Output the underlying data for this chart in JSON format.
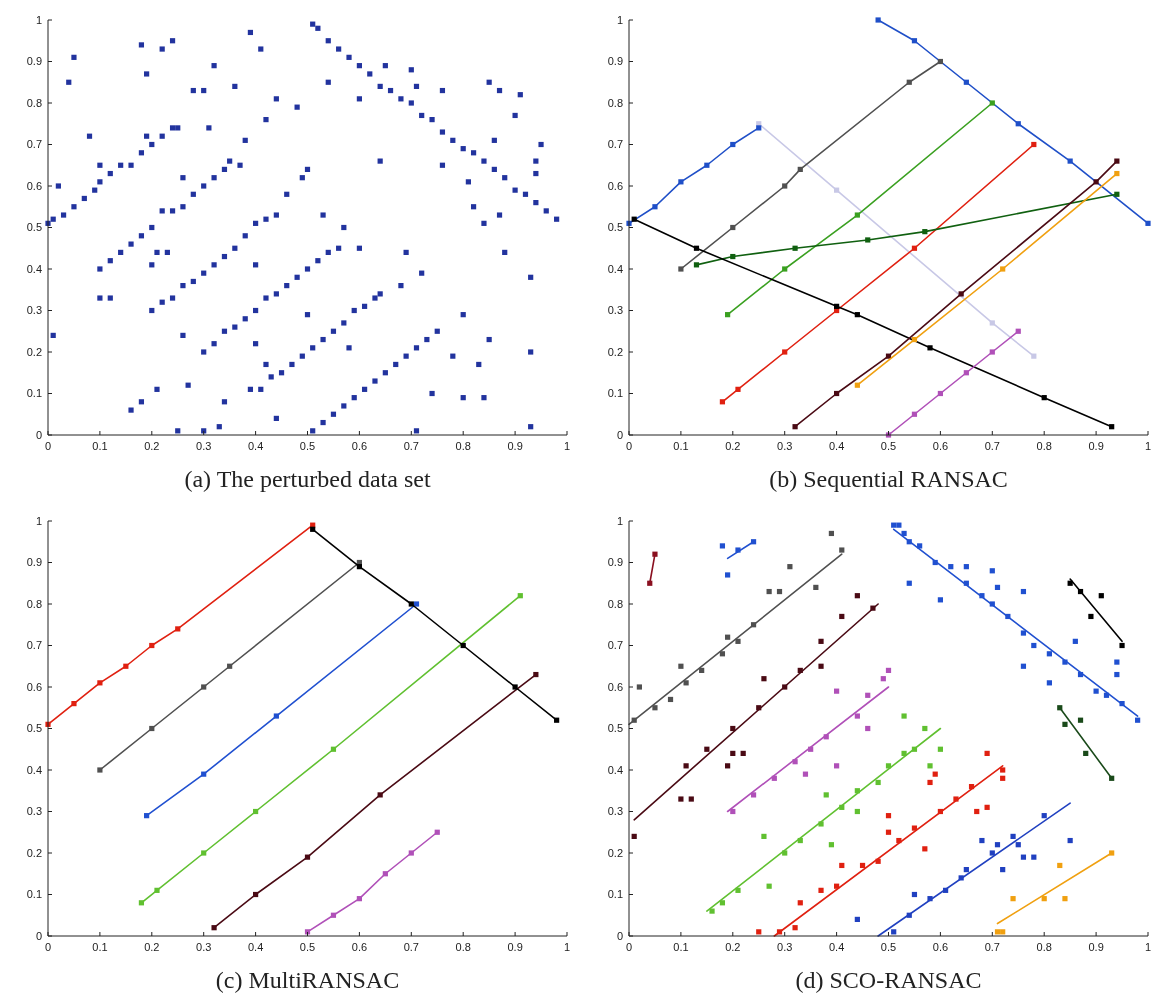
{
  "chart_data": [
    {
      "type": "scatter",
      "title": "(a) The perturbed data set",
      "xlim": [
        0,
        1
      ],
      "ylim": [
        0,
        1
      ],
      "xticks": [
        0,
        0.1,
        0.2,
        0.3,
        0.4,
        0.5,
        0.6,
        0.7,
        0.8,
        0.9,
        1
      ],
      "yticks": [
        0,
        0.1,
        0.2,
        0.3,
        0.4,
        0.5,
        0.6,
        0.7,
        0.8,
        0.9,
        1
      ],
      "grid": false,
      "marker": "square",
      "series": [
        {
          "color": "#22339e",
          "x": [
            0,
            0.01,
            0.03,
            0.05,
            0.07,
            0.09,
            0.1,
            0.12,
            0.14,
            0.16,
            0.18,
            0.2,
            0.22,
            0.24,
            0.25,
            0.1,
            0.12,
            0.14,
            0.16,
            0.18,
            0.2,
            0.22,
            0.24,
            0.26,
            0.28,
            0.3,
            0.32,
            0.34,
            0.35,
            0.2,
            0.22,
            0.24,
            0.26,
            0.28,
            0.3,
            0.32,
            0.34,
            0.36,
            0.38,
            0.4,
            0.42,
            0.44,
            0.3,
            0.32,
            0.34,
            0.36,
            0.38,
            0.4,
            0.42,
            0.44,
            0.46,
            0.48,
            0.5,
            0.52,
            0.54,
            0.56,
            0.39,
            0.41,
            0.43,
            0.45,
            0.47,
            0.49,
            0.51,
            0.53,
            0.55,
            0.57,
            0.59,
            0.61,
            0.63,
            0.64,
            0.51,
            0.53,
            0.55,
            0.57,
            0.59,
            0.61,
            0.63,
            0.65,
            0.67,
            0.69,
            0.71,
            0.73,
            0.75,
            0.51,
            0.52,
            0.54,
            0.56,
            0.58,
            0.6,
            0.62,
            0.64,
            0.66,
            0.68,
            0.7,
            0.72,
            0.74,
            0.76,
            0.78,
            0.8,
            0.82,
            0.84,
            0.86,
            0.88,
            0.9,
            0.92,
            0.94,
            0.96,
            0.98,
            0.01,
            0.02,
            0.04,
            0.05,
            0.08,
            0.1,
            0.1,
            0.12,
            0.16,
            0.18,
            0.18,
            0.19,
            0.19,
            0.2,
            0.21,
            0.21,
            0.22,
            0.23,
            0.24,
            0.25,
            0.26,
            0.26,
            0.27,
            0.28,
            0.3,
            0.3,
            0.31,
            0.32,
            0.33,
            0.34,
            0.36,
            0.37,
            0.38,
            0.39,
            0.4,
            0.4,
            0.41,
            0.42,
            0.42,
            0.44,
            0.44,
            0.46,
            0.48,
            0.49,
            0.5,
            0.5,
            0.53,
            0.54,
            0.57,
            0.58,
            0.6,
            0.6,
            0.64,
            0.65,
            0.68,
            0.69,
            0.7,
            0.71,
            0.71,
            0.72,
            0.74,
            0.76,
            0.76,
            0.78,
            0.8,
            0.8,
            0.81,
            0.82,
            0.83,
            0.84,
            0.84,
            0.85,
            0.85,
            0.86,
            0.87,
            0.87,
            0.88,
            0.9,
            0.91,
            0.93,
            0.93,
            0.93,
            0.95,
            0.94,
            0.94
          ],
          "values": [
            0.51,
            0.52,
            0.53,
            0.55,
            0.57,
            0.59,
            0.61,
            0.63,
            0.65,
            0.65,
            0.68,
            0.7,
            0.72,
            0.74,
            0.74,
            0.4,
            0.42,
            0.44,
            0.46,
            0.48,
            0.5,
            0.54,
            0.54,
            0.55,
            0.58,
            0.6,
            0.62,
            0.64,
            0.66,
            0.3,
            0.32,
            0.33,
            0.36,
            0.37,
            0.39,
            0.41,
            0.43,
            0.45,
            0.48,
            0.51,
            0.52,
            0.53,
            0.2,
            0.22,
            0.25,
            0.26,
            0.28,
            0.3,
            0.33,
            0.34,
            0.36,
            0.38,
            0.4,
            0.42,
            0.44,
            0.45,
            0.11,
            0.11,
            0.14,
            0.15,
            0.17,
            0.19,
            0.21,
            0.23,
            0.25,
            0.27,
            0.3,
            0.31,
            0.33,
            0.34,
            0.01,
            0.03,
            0.05,
            0.07,
            0.09,
            0.11,
            0.13,
            0.15,
            0.17,
            0.19,
            0.21,
            0.23,
            0.25,
            0.99,
            0.98,
            0.95,
            0.93,
            0.91,
            0.89,
            0.87,
            0.84,
            0.83,
            0.81,
            0.8,
            0.77,
            0.76,
            0.73,
            0.71,
            0.69,
            0.68,
            0.66,
            0.64,
            0.62,
            0.59,
            0.58,
            0.56,
            0.54,
            0.52,
            0.24,
            0.6,
            0.85,
            0.91,
            0.72,
            0.65,
            0.33,
            0.33,
            0.06,
            0.08,
            0.94,
            0.87,
            0.72,
            0.41,
            0.44,
            0.11,
            0.93,
            0.44,
            0.95,
            0.01,
            0.24,
            0.62,
            0.12,
            0.83,
            0.83,
            0.01,
            0.74,
            0.89,
            0.02,
            0.08,
            0.84,
            0.65,
            0.71,
            0.97,
            0.22,
            0.41,
            0.93,
            0.76,
            0.17,
            0.81,
            0.04,
            0.58,
            0.79,
            0.62,
            0.64,
            0.29,
            0.53,
            0.85,
            0.5,
            0.21,
            0.81,
            0.45,
            0.66,
            0.89,
            0.36,
            0.44,
            0.88,
            0.84,
            0.01,
            0.39,
            0.1,
            0.65,
            0.83,
            0.19,
            0.29,
            0.09,
            0.61,
            0.55,
            0.17,
            0.51,
            0.09,
            0.85,
            0.23,
            0.71,
            0.83,
            0.53,
            0.44,
            0.77,
            0.82,
            0.38,
            0.2,
            0.02,
            0.7,
            0.63,
            0.66
          ]
        }
      ]
    },
    {
      "type": "line",
      "title": "(b) Sequential RANSAC",
      "xlim": [
        0,
        1
      ],
      "ylim": [
        0,
        1
      ],
      "xticks": [
        0,
        0.1,
        0.2,
        0.3,
        0.4,
        0.5,
        0.6,
        0.7,
        0.8,
        0.9,
        1
      ],
      "yticks": [
        0,
        0.1,
        0.2,
        0.3,
        0.4,
        0.5,
        0.6,
        0.7,
        0.8,
        0.9,
        1
      ],
      "grid": false,
      "marker": "square",
      "series": [
        {
          "color": "#c8c8e6",
          "x": [
            0.25,
            0.4,
            0.7,
            0.78
          ],
          "values": [
            0.75,
            0.59,
            0.27,
            0.19
          ]
        },
        {
          "color": "#1f4fc8",
          "x": [
            0,
            0.05,
            0.1,
            0.15,
            0.2,
            0.25
          ],
          "values": [
            0.51,
            0.55,
            0.61,
            0.65,
            0.7,
            0.74
          ]
        },
        {
          "color": "#1f4fc8",
          "x": [
            0.48,
            0.55,
            0.65,
            0.75,
            0.85,
            1
          ],
          "values": [
            1,
            0.95,
            0.85,
            0.75,
            0.66,
            0.51
          ]
        },
        {
          "color": "#505050",
          "x": [
            0.1,
            0.2,
            0.3,
            0.33,
            0.54,
            0.6
          ],
          "values": [
            0.4,
            0.5,
            0.6,
            0.64,
            0.85,
            0.9
          ]
        },
        {
          "color": "#3aa020",
          "x": [
            0.19,
            0.3,
            0.44,
            0.7
          ],
          "values": [
            0.29,
            0.4,
            0.53,
            0.8
          ]
        },
        {
          "color": "#e02010",
          "x": [
            0.18,
            0.21,
            0.3,
            0.4,
            0.55,
            0.78
          ],
          "values": [
            0.08,
            0.11,
            0.2,
            0.3,
            0.45,
            0.7
          ]
        },
        {
          "color": "#106010",
          "x": [
            0.13,
            0.2,
            0.32,
            0.46,
            0.57,
            0.94
          ],
          "values": [
            0.41,
            0.43,
            0.45,
            0.47,
            0.49,
            0.58
          ]
        },
        {
          "color": "#000000",
          "x": [
            0.01,
            0.13,
            0.4,
            0.44,
            0.58,
            0.8,
            0.93
          ],
          "values": [
            0.52,
            0.45,
            0.31,
            0.29,
            0.21,
            0.09,
            0.02
          ]
        },
        {
          "color": "#4a0a14",
          "x": [
            0.32,
            0.4,
            0.5,
            0.64,
            0.9,
            0.94
          ],
          "values": [
            0.02,
            0.1,
            0.19,
            0.34,
            0.61,
            0.66
          ]
        },
        {
          "color": "#f0a010",
          "x": [
            0.44,
            0.55,
            0.72,
            0.94
          ],
          "values": [
            0.12,
            0.23,
            0.4,
            0.63
          ]
        },
        {
          "color": "#b050b8",
          "x": [
            0.5,
            0.55,
            0.6,
            0.65,
            0.7,
            0.75
          ],
          "values": [
            0,
            0.05,
            0.1,
            0.15,
            0.2,
            0.25
          ]
        }
      ]
    },
    {
      "type": "line",
      "title": "(c) MultiRANSAC",
      "xlim": [
        0,
        1
      ],
      "ylim": [
        0,
        1
      ],
      "xticks": [
        0,
        0.1,
        0.2,
        0.3,
        0.4,
        0.5,
        0.6,
        0.7,
        0.8,
        0.9,
        1
      ],
      "yticks": [
        0,
        0.1,
        0.2,
        0.3,
        0.4,
        0.5,
        0.6,
        0.7,
        0.8,
        0.9,
        1
      ],
      "grid": false,
      "marker": "square",
      "series": [
        {
          "color": "#e02010",
          "x": [
            0,
            0.05,
            0.1,
            0.15,
            0.2,
            0.25,
            0.51
          ],
          "values": [
            0.51,
            0.56,
            0.61,
            0.65,
            0.7,
            0.74,
            0.99
          ]
        },
        {
          "color": "#505050",
          "x": [
            0.1,
            0.2,
            0.3,
            0.35,
            0.6
          ],
          "values": [
            0.4,
            0.5,
            0.6,
            0.65,
            0.9
          ]
        },
        {
          "color": "#2050d0",
          "x": [
            0.19,
            0.3,
            0.44,
            0.71
          ],
          "values": [
            0.29,
            0.39,
            0.53,
            0.8
          ]
        },
        {
          "color": "#60c030",
          "x": [
            0.18,
            0.21,
            0.3,
            0.4,
            0.55,
            0.91
          ],
          "values": [
            0.08,
            0.11,
            0.2,
            0.3,
            0.45,
            0.82
          ]
        },
        {
          "color": "#4a0a14",
          "x": [
            0.32,
            0.4,
            0.5,
            0.64,
            0.94
          ],
          "values": [
            0.02,
            0.1,
            0.19,
            0.34,
            0.63
          ]
        },
        {
          "color": "#b050b8",
          "x": [
            0.5,
            0.55,
            0.6,
            0.65,
            0.7,
            0.75
          ],
          "values": [
            0.01,
            0.05,
            0.09,
            0.15,
            0.2,
            0.25
          ]
        },
        {
          "color": "#000000",
          "x": [
            0.51,
            0.6,
            0.7,
            0.8,
            0.9,
            0.98
          ],
          "values": [
            0.98,
            0.89,
            0.8,
            0.7,
            0.6,
            0.52
          ]
        }
      ]
    },
    {
      "type": "scatter",
      "title": "(d) SCO-RANSAC",
      "xlim": [
        0,
        1
      ],
      "ylim": [
        0,
        1
      ],
      "xticks": [
        0,
        0.1,
        0.2,
        0.3,
        0.4,
        0.5,
        0.6,
        0.7,
        0.8,
        0.9,
        1
      ],
      "yticks": [
        0,
        0.1,
        0.2,
        0.3,
        0.4,
        0.5,
        0.6,
        0.7,
        0.8,
        0.9,
        1
      ],
      "grid": false,
      "marker": "square",
      "series": [
        {
          "type": "line",
          "marker": "none",
          "color": "#8a1020",
          "x": [
            0.04,
            0.05
          ],
          "values": [
            0.85,
            0.92
          ]
        },
        {
          "color": "#8a1020",
          "x": [
            0.04,
            0.05
          ],
          "values": [
            0.85,
            0.92
          ]
        },
        {
          "type": "line",
          "marker": "none",
          "color": "#2050d0",
          "x": [
            0.19,
            0.24
          ],
          "values": [
            0.91,
            0.95
          ]
        },
        {
          "color": "#2050d0",
          "x": [
            0.18,
            0.19,
            0.21,
            0.24
          ],
          "values": [
            0.94,
            0.87,
            0.93,
            0.95
          ]
        },
        {
          "type": "line",
          "marker": "none",
          "color": "#505050",
          "x": [
            0,
            0.41
          ],
          "values": [
            0.51,
            0.92
          ]
        },
        {
          "color": "#505050",
          "x": [
            0.01,
            0.02,
            0.05,
            0.08,
            0.1,
            0.11,
            0.14,
            0.18,
            0.19,
            0.21,
            0.24,
            0.27,
            0.29,
            0.31,
            0.36,
            0.39,
            0.41
          ],
          "values": [
            0.52,
            0.6,
            0.55,
            0.57,
            0.65,
            0.61,
            0.64,
            0.68,
            0.72,
            0.71,
            0.75,
            0.83,
            0.83,
            0.89,
            0.84,
            0.97,
            0.93
          ]
        },
        {
          "type": "line",
          "marker": "none",
          "color": "#4a0a14",
          "x": [
            0.01,
            0.48
          ],
          "values": [
            0.28,
            0.8
          ]
        },
        {
          "color": "#4a0a14",
          "x": [
            0.01,
            0.1,
            0.12,
            0.11,
            0.15,
            0.19,
            0.2,
            0.22,
            0.2,
            0.25,
            0.26,
            0.3,
            0.33,
            0.37,
            0.37,
            0.41,
            0.44,
            0.47
          ],
          "values": [
            0.24,
            0.33,
            0.33,
            0.41,
            0.45,
            0.41,
            0.44,
            0.44,
            0.5,
            0.55,
            0.62,
            0.6,
            0.64,
            0.71,
            0.65,
            0.77,
            0.82,
            0.79
          ]
        },
        {
          "type": "line",
          "marker": "none",
          "color": "#b050b8",
          "x": [
            0.19,
            0.5
          ],
          "values": [
            0.3,
            0.6
          ]
        },
        {
          "color": "#b050b8",
          "x": [
            0.2,
            0.24,
            0.28,
            0.32,
            0.34,
            0.35,
            0.38,
            0.4,
            0.4,
            0.44,
            0.46,
            0.46,
            0.49,
            0.5
          ],
          "values": [
            0.3,
            0.34,
            0.38,
            0.42,
            0.39,
            0.45,
            0.48,
            0.41,
            0.59,
            0.53,
            0.58,
            0.5,
            0.62,
            0.64
          ]
        },
        {
          "type": "line",
          "marker": "none",
          "color": "#60c030",
          "x": [
            0.15,
            0.6
          ],
          "values": [
            0.06,
            0.5
          ]
        },
        {
          "color": "#60c030",
          "x": [
            0.16,
            0.18,
            0.21,
            0.26,
            0.27,
            0.3,
            0.33,
            0.37,
            0.38,
            0.39,
            0.41,
            0.44,
            0.44,
            0.48,
            0.5,
            0.53,
            0.53,
            0.55,
            0.57,
            0.58,
            0.6
          ],
          "values": [
            0.06,
            0.08,
            0.11,
            0.24,
            0.12,
            0.2,
            0.23,
            0.27,
            0.34,
            0.22,
            0.31,
            0.35,
            0.3,
            0.37,
            0.41,
            0.44,
            0.53,
            0.45,
            0.5,
            0.41,
            0.45
          ]
        },
        {
          "type": "line",
          "marker": "none",
          "color": "#e02010",
          "x": [
            0.28,
            0.72
          ],
          "values": [
            0,
            0.41
          ]
        },
        {
          "color": "#e02010",
          "x": [
            0.25,
            0.29,
            0.32,
            0.33,
            0.37,
            0.4,
            0.41,
            0.45,
            0.48,
            0.5,
            0.5,
            0.52,
            0.55,
            0.57,
            0.58,
            0.59,
            0.6,
            0.63,
            0.66,
            0.67,
            0.69,
            0.69,
            0.72,
            0.72
          ],
          "values": [
            0.01,
            0.01,
            0.02,
            0.08,
            0.11,
            0.12,
            0.17,
            0.17,
            0.18,
            0.25,
            0.29,
            0.23,
            0.26,
            0.21,
            0.37,
            0.39,
            0.3,
            0.33,
            0.36,
            0.3,
            0.31,
            0.44,
            0.38,
            0.4
          ]
        },
        {
          "type": "line",
          "marker": "none",
          "color": "#2040c0",
          "x": [
            0.48,
            0.85
          ],
          "values": [
            0,
            0.32
          ]
        },
        {
          "color": "#2040c0",
          "x": [
            0.44,
            0.51,
            0.54,
            0.55,
            0.58,
            0.61,
            0.64,
            0.65,
            0.68,
            0.7,
            0.71,
            0.72,
            0.74,
            0.75,
            0.76,
            0.78,
            0.8,
            0.85
          ],
          "values": [
            0.04,
            0.01,
            0.05,
            0.1,
            0.09,
            0.11,
            0.14,
            0.16,
            0.23,
            0.2,
            0.22,
            0.16,
            0.24,
            0.22,
            0.19,
            0.19,
            0.29,
            0.23
          ]
        },
        {
          "type": "line",
          "marker": "none",
          "color": "#f0a010",
          "x": [
            0.71,
            0.93
          ],
          "values": [
            0.03,
            0.2
          ]
        },
        {
          "color": "#f0a010",
          "x": [
            0.71,
            0.72,
            0.74,
            0.8,
            0.83,
            0.84,
            0.93
          ],
          "values": [
            0.01,
            0.01,
            0.09,
            0.09,
            0.17,
            0.09,
            0.2
          ]
        },
        {
          "type": "line",
          "marker": "none",
          "color": "#2050d0",
          "x": [
            0.51,
            0.98
          ],
          "values": [
            0.98,
            0.53
          ]
        },
        {
          "color": "#2050d0",
          "x": [
            0.51,
            0.52,
            0.53,
            0.54,
            0.54,
            0.56,
            0.59,
            0.6,
            0.62,
            0.65,
            0.65,
            0.68,
            0.7,
            0.7,
            0.71,
            0.73,
            0.76,
            0.76,
            0.76,
            0.78,
            0.81,
            0.81,
            0.84,
            0.86,
            0.87,
            0.9,
            0.92,
            0.94,
            0.94,
            0.95,
            0.98
          ],
          "values": [
            0.99,
            0.99,
            0.97,
            0.95,
            0.85,
            0.94,
            0.9,
            0.81,
            0.89,
            0.85,
            0.89,
            0.82,
            0.8,
            0.88,
            0.84,
            0.77,
            0.83,
            0.73,
            0.65,
            0.7,
            0.68,
            0.61,
            0.66,
            0.71,
            0.63,
            0.59,
            0.58,
            0.66,
            0.63,
            0.56,
            0.52
          ]
        },
        {
          "type": "line",
          "marker": "none",
          "color": "#000000",
          "x": [
            0.85,
            0.95
          ],
          "values": [
            0.86,
            0.71
          ]
        },
        {
          "color": "#000000",
          "x": [
            0.85,
            0.87,
            0.89,
            0.91,
            0.95
          ],
          "values": [
            0.85,
            0.83,
            0.77,
            0.82,
            0.7
          ]
        },
        {
          "type": "line",
          "marker": "none",
          "color": "#1a4a1a",
          "x": [
            0.83,
            0.93
          ],
          "values": [
            0.55,
            0.38
          ]
        },
        {
          "color": "#1a4a1a",
          "x": [
            0.83,
            0.84,
            0.87,
            0.88,
            0.93
          ],
          "values": [
            0.55,
            0.51,
            0.52,
            0.44,
            0.38
          ]
        }
      ]
    }
  ]
}
